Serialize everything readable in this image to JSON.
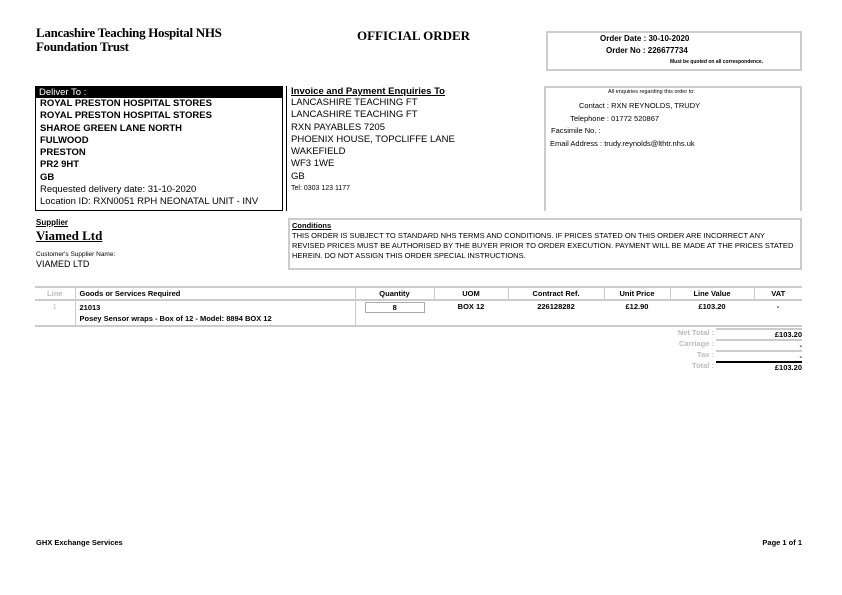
{
  "header": {
    "org_line1": "Lancashire Teaching Hospital NHS",
    "org_line2": "Foundation Trust",
    "title": "OFFICIAL ORDER",
    "order_date": "Order Date : 30-10-2020",
    "order_no": "Order No : 226677734",
    "quote_note": "Must be quoted on all correspondence."
  },
  "deliver": {
    "heading": "Deliver To :",
    "lines": [
      "ROYAL PRESTON HOSPITAL STORES",
      "ROYAL PRESTON HOSPITAL STORES",
      "SHAROE GREEN LANE NORTH",
      "FULWOOD",
      "PRESTON",
      "PR2 9HT",
      "GB"
    ],
    "requested": "Requested delivery date: 31-10-2020",
    "location": "Location ID: RXN0051 RPH NEONATAL UNIT - INV"
  },
  "invoice": {
    "heading": "Invoice and Payment Enquiries To",
    "lines": [
      "LANCASHIRE TEACHING FT",
      "LANCASHIRE TEACHING FT",
      "RXN PAYABLES 7205",
      "PHOENIX HOUSE, TOPCLIFFE LANE",
      "WAKEFIELD",
      "WF3 1WE",
      "GB"
    ],
    "tel": "Tel: 0303 123 1177"
  },
  "enquiries": {
    "heading": "All enquiries regarding this order to:",
    "contact_label": "Contact :",
    "contact": "RXN REYNOLDS, TRUDY",
    "telephone_label": "Telephone :",
    "telephone": "01772 520867",
    "fax_label": "Facsimile No. :",
    "fax": "",
    "email_label": "Email Address :",
    "email": "trudy.reynolds@lthtr.nhs.uk"
  },
  "supplier": {
    "heading": "Supplier",
    "name": "Viamed Ltd",
    "customer_label": "Customer's Supplier Name:",
    "customer_name": "VIAMED LTD"
  },
  "conditions": {
    "heading": "Conditions",
    "text": "THIS ORDER IS SUBJECT TO STANDARD NHS TERMS AND CONDITIONS. IF PRICES STATED ON THIS ORDER ARE INCORRECT ANY REVISED PRICES MUST BE AUTHORISED BY THE BUYER PRIOR TO ORDER EXECUTION. PAYMENT WILL BE MADE AT THE PRICES STATED HEREIN. DO NOT ASSIGN THIS ORDER SPECIAL INSTRUCTIONS."
  },
  "table": {
    "headers": [
      "Line",
      "Goods or Services Required",
      "Quantity",
      "UOM",
      "Contract Ref.",
      "Unit Price",
      "Line Value",
      "VAT"
    ],
    "rows": [
      {
        "line": "1",
        "code": "21013",
        "description": "Posey Sensor wraps - Box of 12 - Model: 8894 BOX 12",
        "quantity": "8",
        "uom": "BOX 12",
        "contract_ref": "226128282",
        "unit_price": "£12.90",
        "line_value": "£103.20",
        "vat": "-"
      }
    ]
  },
  "totals": {
    "net_label": "Net Total :",
    "net": "£103.20",
    "carriage_label": "Carriage :",
    "carriage": "-",
    "tax_label": "Tax :",
    "tax": "-",
    "total_label": "Total :",
    "total": "£103.20"
  },
  "footer": {
    "left": "GHX Exchange Services",
    "right": "Page 1 of 1"
  }
}
